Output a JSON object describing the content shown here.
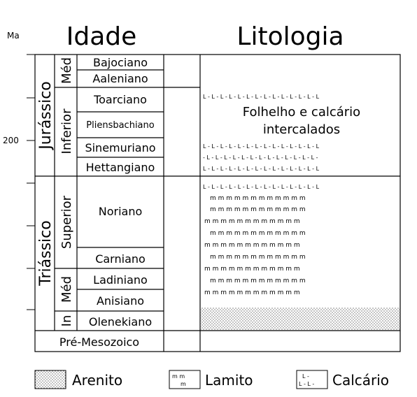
{
  "header": {
    "ma_label": "Ma",
    "idade_title": "Idade",
    "litologia_title": "Litologia"
  },
  "axis": {
    "tick_200": "200"
  },
  "periods": [
    {
      "name": "Jurássico"
    },
    {
      "name": "Triássico"
    }
  ],
  "epochs": [
    {
      "name": "Méd"
    },
    {
      "name": "Inferior"
    },
    {
      "name": "Superior"
    },
    {
      "name": "Méd"
    },
    {
      "name": "In"
    }
  ],
  "stages": [
    {
      "name": "Bajociano"
    },
    {
      "name": "Aaleniano"
    },
    {
      "name": "Toarciano"
    },
    {
      "name": "Pliensbachiano"
    },
    {
      "name": "Sinemuriano"
    },
    {
      "name": "Hettangiano"
    },
    {
      "name": "Noriano"
    },
    {
      "name": "Carniano"
    },
    {
      "name": "Ladiniano"
    },
    {
      "name": "Anisiano"
    },
    {
      "name": "Olenekiano"
    }
  ],
  "pre_mesozoic": "Pré-Mesozoico",
  "lithology": {
    "label_line1": "Folhelho e calcário",
    "label_line2": "intercalados",
    "limestone_pattern": "L - L - L - L - L - L - L - L - L - L - L - L - L - L",
    "limestone_pattern_offset": "- L - L - L - L - L - L - L - L - L - L - L - L - L -",
    "mudstone_pattern": "m  m  m  m  m  m  m  m  m  m  m  m"
  },
  "legend": [
    {
      "label": "Arenito",
      "icon": "sandstone-pattern"
    },
    {
      "label": "Lamito",
      "icon": "mudstone-pattern",
      "glyph_a": "m m",
      "glyph_b": "m"
    },
    {
      "label": "Calcário",
      "icon": "limestone-pattern",
      "glyph_a": "L -",
      "glyph_b": "L - L -"
    }
  ]
}
